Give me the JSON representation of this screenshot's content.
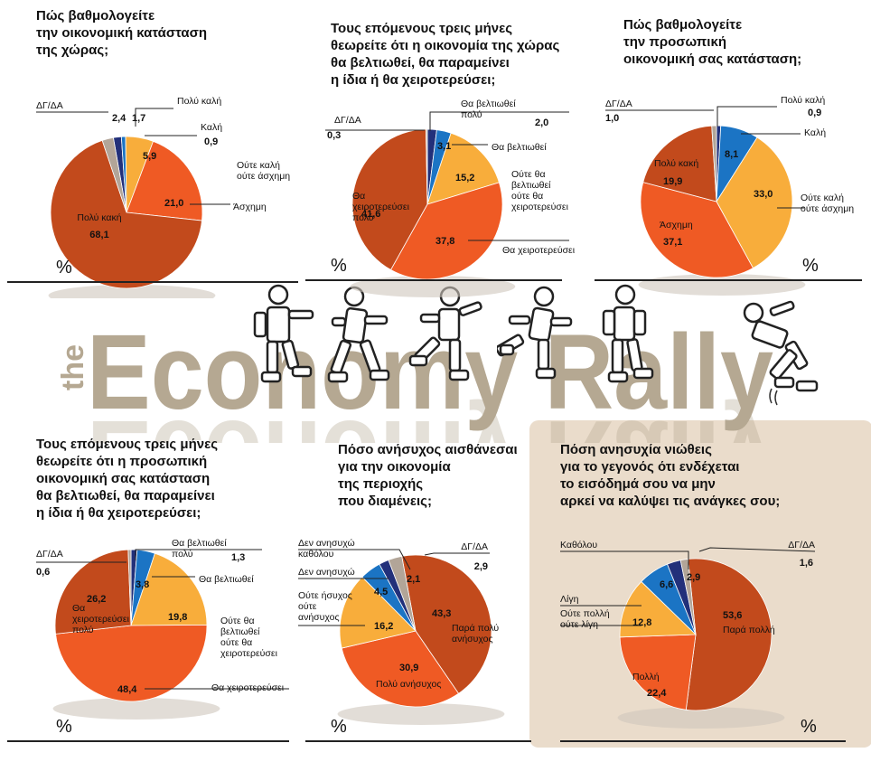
{
  "brand": {
    "the": "the",
    "title": "Economy Rally"
  },
  "colors": {
    "dark_orange": "#c24a1c",
    "orange": "#ef5a24",
    "light_orange": "#f8ad3b",
    "blue": "#1b74c4",
    "navy": "#22307a",
    "grey": "#b2a598",
    "highlight_bg": "#eadccb",
    "wordmark": "#b5a892"
  },
  "chart_data": [
    {
      "type": "pie",
      "id": "c1",
      "question": "Πώς βαθμολογείτε την οικονομική κατάσταση της χώρας;",
      "unit": "%",
      "slices": [
        {
          "label": "Πολύ καλή",
          "value": 1.7,
          "value_label": "1,7",
          "color": "navy"
        },
        {
          "label": "Καλή",
          "value": 0.9,
          "value_label": "0,9",
          "color": "blue"
        },
        {
          "label": "Ούτε καλή ούτε άσχημη",
          "value": 5.9,
          "value_label": "5,9",
          "color": "light_orange"
        },
        {
          "label": "Άσχημη",
          "value": 21.0,
          "value_label": "21,0",
          "color": "orange"
        },
        {
          "label": "Πολύ κακή",
          "value": 68.1,
          "value_label": "68,1",
          "color": "dark_orange"
        },
        {
          "label": "ΔΓ/ΔΑ",
          "value": 2.4,
          "value_label": "2,4",
          "color": "grey"
        }
      ]
    },
    {
      "type": "pie",
      "id": "c2",
      "question": "Τους επόμενους τρεις μήνες θεωρείτε ότι η οικονομία της χώρας θα βελτιωθεί, θα παραμείνει η ίδια ή θα χειροτερεύσει;",
      "unit": "%",
      "slices": [
        {
          "label": "Θα βελτιωθεί πολύ",
          "value": 2.0,
          "value_label": "2,0",
          "color": "navy"
        },
        {
          "label": "Θα βελτιωθεί",
          "value": 3.1,
          "value_label": "3,1",
          "color": "blue"
        },
        {
          "label": "Ούτε θα βελτιωθεί ούτε θα χειροτερεύσει",
          "value": 15.2,
          "value_label": "15,2",
          "color": "light_orange"
        },
        {
          "label": "Θα χειροτερεύσει",
          "value": 37.8,
          "value_label": "37,8",
          "color": "orange"
        },
        {
          "label": "Θα χειροτερεύσει πολύ",
          "value": 41.6,
          "value_label": "41,6",
          "color": "dark_orange"
        },
        {
          "label": "ΔΓ/ΔΑ",
          "value": 0.3,
          "value_label": "0,3",
          "color": "grey"
        }
      ]
    },
    {
      "type": "pie",
      "id": "c3",
      "question": "Πώς βαθμολογείτε την προσωπική οικονομική σας κατάσταση;",
      "unit": "%",
      "slices": [
        {
          "label": "Πολύ καλή",
          "value": 0.9,
          "value_label": "0,9",
          "color": "navy"
        },
        {
          "label": "Καλή",
          "value": 8.1,
          "value_label": "8,1",
          "color": "blue"
        },
        {
          "label": "Ούτε καλή ούτε άσχημη",
          "value": 33.0,
          "value_label": "33,0",
          "color": "light_orange"
        },
        {
          "label": "Άσχημη",
          "value": 37.1,
          "value_label": "37,1",
          "color": "orange"
        },
        {
          "label": "Πολύ κακή",
          "value": 19.9,
          "value_label": "19,9",
          "color": "dark_orange"
        },
        {
          "label": "ΔΓ/ΔΑ",
          "value": 1.0,
          "value_label": "1,0",
          "color": "grey"
        }
      ]
    },
    {
      "type": "pie",
      "id": "c4",
      "question": "Τους επόμενους τρεις μήνες θεωρείτε ότι η προσωπική οικονομική σας κατάσταση θα βελτιωθεί, θα παραμείνει η ίδια ή θα χειροτερεύσει;",
      "unit": "%",
      "slices": [
        {
          "label": "Θα βελτιωθεί πολύ",
          "value": 1.3,
          "value_label": "1,3",
          "color": "navy"
        },
        {
          "label": "Θα βελτιωθεί",
          "value": 3.8,
          "value_label": "3,8",
          "color": "blue"
        },
        {
          "label": "Ούτε θα βελτιωθεί ούτε θα χειροτερεύσει",
          "value": 19.8,
          "value_label": "19,8",
          "color": "light_orange"
        },
        {
          "label": "Θα χειροτερεύσει",
          "value": 48.4,
          "value_label": "48,4",
          "color": "orange"
        },
        {
          "label": "Θα χειροτερεύσει πολύ",
          "value": 26.2,
          "value_label": "26,2",
          "color": "dark_orange"
        },
        {
          "label": "ΔΓ/ΔΑ",
          "value": 0.6,
          "value_label": "0,6",
          "color": "grey"
        }
      ]
    },
    {
      "type": "pie",
      "id": "c5",
      "question": "Πόσο ανήσυχος αισθάνεσαι για την οικονομία της περιοχής που διαμένεις;",
      "unit": "%",
      "slices": [
        {
          "label": "Παρά πολύ ανήσυχος",
          "value": 43.3,
          "value_label": "43,3",
          "color": "dark_orange"
        },
        {
          "label": "Πολύ ανήσυχος",
          "value": 30.9,
          "value_label": "30,9",
          "color": "orange"
        },
        {
          "label": "Ούτε ήσυχος ούτε ανήσυχος",
          "value": 16.2,
          "value_label": "16,2",
          "color": "light_orange"
        },
        {
          "label": "Δεν ανησυχώ",
          "value": 4.5,
          "value_label": "4,5",
          "color": "blue"
        },
        {
          "label": "Δεν ανησυχώ καθόλου",
          "value": 2.1,
          "value_label": "2,1",
          "color": "navy"
        },
        {
          "label": "ΔΓ/ΔΑ",
          "value": 2.9,
          "value_label": "2,9",
          "color": "grey"
        }
      ]
    },
    {
      "type": "pie",
      "id": "c6",
      "question": "Πόση ανησυχία νιώθεις για το γεγονός ότι ενδέχεται το εισόδημά σου να μην αρκεί να καλύψει τις ανάγκες σου;",
      "unit": "%",
      "slices": [
        {
          "label": "Παρά πολλή",
          "value": 53.6,
          "value_label": "53,6",
          "color": "dark_orange"
        },
        {
          "label": "Πολλή",
          "value": 22.4,
          "value_label": "22,4",
          "color": "orange"
        },
        {
          "label": "Ούτε πολλή ούτε λίγη",
          "value": 12.8,
          "value_label": "12,8",
          "color": "light_orange"
        },
        {
          "label": "Λίγη",
          "value": 6.6,
          "value_label": "6,6",
          "color": "blue"
        },
        {
          "label": "Καθόλου",
          "value": 2.9,
          "value_label": "2,9",
          "color": "navy"
        },
        {
          "label": "ΔΓ/ΔΑ",
          "value": 1.6,
          "value_label": "1,6",
          "color": "grey"
        }
      ]
    }
  ],
  "questions_display": {
    "c1": [
      "Πώς βαθμολογείτε",
      "την οικονομική κατάσταση",
      "της χώρας;"
    ],
    "c2": [
      "Τους επόμενους τρεις μήνες",
      "θεωρείτε ότι η οικονομία της χώρας",
      "θα βελτιωθεί, θα παραμείνει",
      "η ίδια ή θα χειροτερεύσει;"
    ],
    "c3": [
      "Πώς βαθμολογείτε",
      "την προσωπική",
      "οικονομική σας κατάσταση;"
    ],
    "c4": [
      "Τους επόμενους τρεις μήνες",
      "θεωρείτε ότι η προσωπική",
      "οικονομική σας κατάσταση",
      "θα βελτιωθεί, θα παραμείνει",
      "η ίδια ή θα χειροτερεύσει;"
    ],
    "c5": [
      "Πόσο ανήσυχος αισθάνεσαι",
      "για την οικονομία",
      "της περιοχής",
      "που διαμένεις;"
    ],
    "c6": [
      "Πόση ανησυχία νιώθεις",
      "για το γεγονός ότι ενδέχεται",
      "το εισόδημά σου να μην",
      "αρκεί να καλύψει τις ανάγκες σου;"
    ]
  }
}
